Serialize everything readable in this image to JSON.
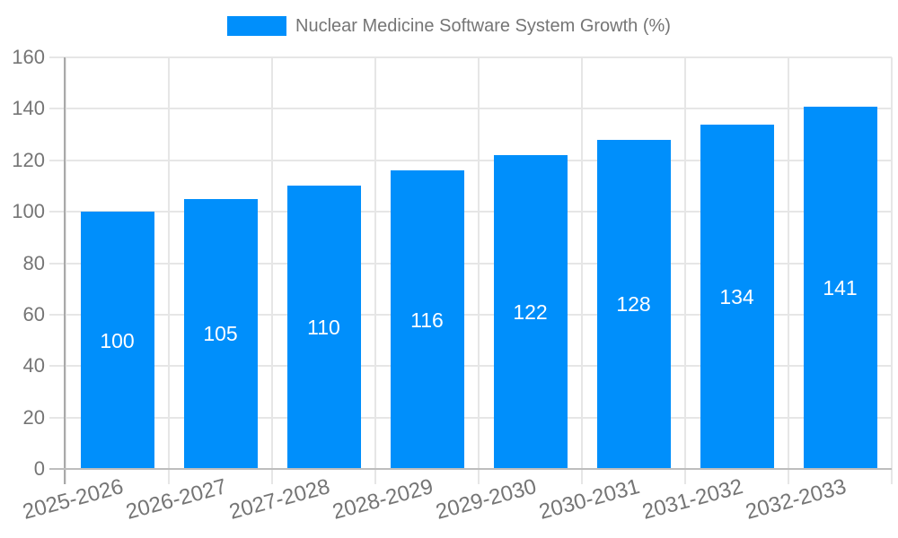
{
  "legend": {
    "label": "Nuclear Medicine Software System Growth (%)"
  },
  "colors": {
    "bar": "#008FFB",
    "axis_text": "#757575",
    "grid": "#e6e6e6",
    "y_axis_line": "#a9a9a9",
    "x_axis_line": "#bdbdbd",
    "value_label": "#ffffff",
    "background": "#ffffff"
  },
  "chart_data": {
    "type": "bar",
    "title": "Nuclear Medicine Software System Growth (%)",
    "categories": [
      "2025-2026",
      "2026-2027",
      "2027-2028",
      "2028-2029",
      "2029-2030",
      "2030-2031",
      "2031-2032",
      "2032-2033"
    ],
    "values": [
      100,
      105,
      110,
      116,
      122,
      128,
      134,
      141
    ],
    "xlabel": "",
    "ylabel": "",
    "ylim": [
      0,
      160
    ],
    "ytick_step": 20,
    "yticks": [
      0,
      20,
      40,
      60,
      80,
      100,
      120,
      140,
      160
    ],
    "grid": true,
    "legend_position": "top",
    "bar_label_position": "center",
    "x_label_rotation_deg": -15
  }
}
